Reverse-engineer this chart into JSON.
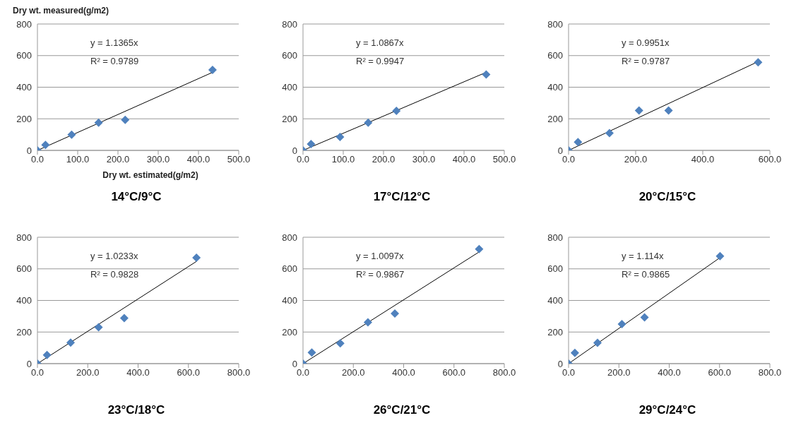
{
  "chart_data": [
    {
      "type": "scatter",
      "title": "14°C/9°C",
      "xlabel": "Dry wt. estimated(g/m2)",
      "ylabel": "Dry wt. measured(g/m2)",
      "marker": "diamond",
      "grid": "y",
      "legend": false,
      "xlim": [
        0,
        500
      ],
      "xticks": [
        {
          "value": 0,
          "label": "0.0"
        },
        {
          "value": 100,
          "label": "100.0"
        },
        {
          "value": 200,
          "label": "200.0"
        },
        {
          "value": 300,
          "label": "300.0"
        },
        {
          "value": 400,
          "label": "400.0"
        },
        {
          "value": 500,
          "label": "500.0"
        }
      ],
      "ylim": [
        0,
        800
      ],
      "yticks": [
        0,
        200,
        400,
        600,
        800
      ],
      "annotations": [
        "y = 1.1365x",
        "R² = 0.9789"
      ],
      "series": [
        {
          "color": "#4f81bd",
          "x": [
            0,
            20,
            85,
            152,
            218,
            435
          ],
          "values": [
            0,
            35,
            100,
            175,
            193,
            510
          ]
        },
        {
          "type": "line",
          "marker": "none",
          "color": "#000000",
          "x": [
            0,
            435
          ],
          "values": [
            0,
            494
          ]
        }
      ]
    },
    {
      "type": "scatter",
      "title": "17°C/12°C",
      "marker": "diamond",
      "grid": "y",
      "legend": false,
      "xlim": [
        0,
        500
      ],
      "xticks": [
        {
          "value": 0,
          "label": "0.0"
        },
        {
          "value": 100,
          "label": "100.0"
        },
        {
          "value": 200,
          "label": "200.0"
        },
        {
          "value": 300,
          "label": "300.0"
        },
        {
          "value": 400,
          "label": "400.0"
        },
        {
          "value": 500,
          "label": "500.0"
        }
      ],
      "ylim": [
        0,
        800
      ],
      "yticks": [
        0,
        200,
        400,
        600,
        800
      ],
      "annotations": [
        "y = 1.0867x",
        "R² = 0.9947"
      ],
      "series": [
        {
          "color": "#4f81bd",
          "x": [
            0,
            20,
            92,
            162,
            232,
            455
          ],
          "values": [
            0,
            40,
            85,
            175,
            250,
            480
          ]
        },
        {
          "type": "line",
          "marker": "none",
          "color": "#000000",
          "x": [
            0,
            455
          ],
          "values": [
            0,
            494
          ]
        }
      ]
    },
    {
      "type": "scatter",
      "title": "20°C/15°C",
      "marker": "diamond",
      "grid": "y",
      "legend": false,
      "xlim": [
        0,
        600
      ],
      "xticks": [
        {
          "value": 0,
          "label": "0.0"
        },
        {
          "value": 200,
          "label": "200.0"
        },
        {
          "value": 400,
          "label": "400.0"
        },
        {
          "value": 600,
          "label": "600.0"
        }
      ],
      "ylim": [
        0,
        800
      ],
      "yticks": [
        0,
        200,
        400,
        600,
        800
      ],
      "annotations": [
        "y = 0.9951x",
        "R² = 0.9787"
      ],
      "series": [
        {
          "color": "#4f81bd",
          "x": [
            0,
            28,
            122,
            210,
            298,
            565
          ],
          "values": [
            0,
            52,
            110,
            253,
            253,
            558
          ]
        },
        {
          "type": "line",
          "marker": "none",
          "color": "#000000",
          "x": [
            0,
            565
          ],
          "values": [
            0,
            562
          ]
        }
      ]
    },
    {
      "type": "scatter",
      "title": "23°C/18°C",
      "marker": "diamond",
      "grid": "y",
      "legend": false,
      "xlim": [
        0,
        800
      ],
      "xticks": [
        {
          "value": 0,
          "label": "0.0"
        },
        {
          "value": 200,
          "label": "200.0"
        },
        {
          "value": 400,
          "label": "400.0"
        },
        {
          "value": 600,
          "label": "600.0"
        },
        {
          "value": 800,
          "label": "800.0"
        }
      ],
      "ylim": [
        0,
        800
      ],
      "yticks": [
        0,
        200,
        400,
        600,
        800
      ],
      "annotations": [
        "y = 1.0233x",
        "R² = 0.9828"
      ],
      "series": [
        {
          "color": "#4f81bd",
          "x": [
            0,
            38,
            132,
            243,
            345,
            632
          ],
          "values": [
            0,
            55,
            133,
            230,
            288,
            670
          ]
        },
        {
          "type": "line",
          "marker": "none",
          "color": "#000000",
          "x": [
            0,
            632
          ],
          "values": [
            0,
            647
          ]
        }
      ]
    },
    {
      "type": "scatter",
      "title": "26°C/21°C",
      "marker": "diamond",
      "grid": "y",
      "legend": false,
      "xlim": [
        0,
        800
      ],
      "xticks": [
        {
          "value": 0,
          "label": "0.0"
        },
        {
          "value": 200,
          "label": "200.0"
        },
        {
          "value": 400,
          "label": "400.0"
        },
        {
          "value": 600,
          "label": "600.0"
        },
        {
          "value": 800,
          "label": "800.0"
        }
      ],
      "ylim": [
        0,
        800
      ],
      "yticks": [
        0,
        200,
        400,
        600,
        800
      ],
      "annotations": [
        "y = 1.0097x",
        "R² = 0.9867"
      ],
      "series": [
        {
          "color": "#4f81bd",
          "x": [
            0,
            35,
            148,
            258,
            365,
            700
          ],
          "values": [
            0,
            70,
            128,
            262,
            317,
            725
          ]
        },
        {
          "type": "line",
          "marker": "none",
          "color": "#000000",
          "x": [
            0,
            700
          ],
          "values": [
            0,
            707
          ]
        }
      ]
    },
    {
      "type": "scatter",
      "title": "29°C/24°C",
      "marker": "diamond",
      "grid": "y",
      "legend": false,
      "xlim": [
        0,
        800
      ],
      "xticks": [
        {
          "value": 0,
          "label": "0.0"
        },
        {
          "value": 200,
          "label": "200.0"
        },
        {
          "value": 400,
          "label": "400.0"
        },
        {
          "value": 600,
          "label": "600.0"
        },
        {
          "value": 800,
          "label": "800.0"
        }
      ],
      "ylim": [
        0,
        800
      ],
      "yticks": [
        0,
        200,
        400,
        600,
        800
      ],
      "annotations": [
        "y = 1.114x",
        "R² = 0.9865"
      ],
      "series": [
        {
          "color": "#4f81bd",
          "x": [
            0,
            25,
            115,
            212,
            302,
            602
          ],
          "values": [
            0,
            68,
            132,
            250,
            293,
            680
          ]
        },
        {
          "type": "line",
          "marker": "none",
          "color": "#000000",
          "x": [
            0,
            602
          ],
          "values": [
            0,
            671
          ]
        }
      ]
    }
  ]
}
